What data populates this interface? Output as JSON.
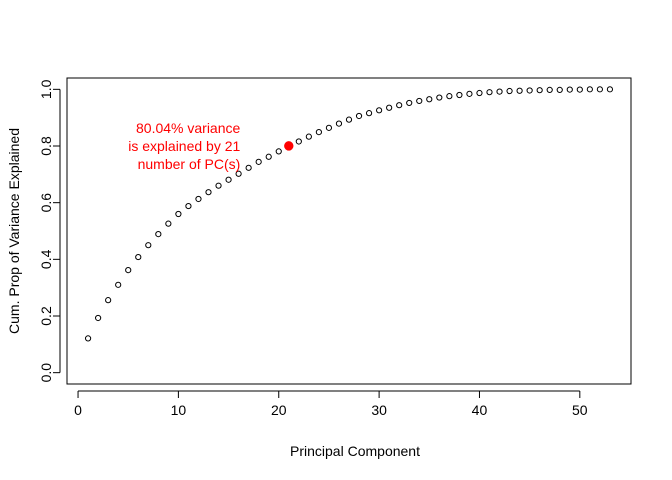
{
  "chart_data": {
    "type": "scatter",
    "title": "",
    "xlabel": "Principal Component",
    "ylabel": "Cum. Prop of Variance Explained",
    "xlim": [
      -1.1,
      55.1
    ],
    "ylim": [
      -0.04,
      1.04
    ],
    "xticks": [
      0,
      10,
      20,
      30,
      40,
      50
    ],
    "yticks": [
      0.0,
      0.2,
      0.4,
      0.6,
      0.8,
      1.0
    ],
    "xtick_labels": [
      "0",
      "10",
      "20",
      "30",
      "40",
      "50"
    ],
    "ytick_labels": [
      "0.0",
      "0.2",
      "0.4",
      "0.6",
      "0.8",
      "1.0"
    ],
    "grid": false,
    "legend": "none",
    "series": [
      {
        "marker": "open-circle",
        "color": "#000000",
        "x": [
          1,
          2,
          3,
          4,
          5,
          6,
          7,
          8,
          9,
          10,
          11,
          12,
          13,
          14,
          15,
          16,
          17,
          18,
          19,
          20,
          21,
          22,
          23,
          24,
          25,
          26,
          27,
          28,
          29,
          30,
          31,
          32,
          33,
          34,
          35,
          36,
          37,
          38,
          39,
          40,
          41,
          42,
          43,
          44,
          45,
          46,
          47,
          48,
          49,
          50,
          51,
          52,
          53
        ],
        "y": [
          0.121,
          0.193,
          0.256,
          0.31,
          0.362,
          0.408,
          0.45,
          0.489,
          0.526,
          0.56,
          0.588,
          0.613,
          0.637,
          0.66,
          0.681,
          0.702,
          0.723,
          0.744,
          0.762,
          0.781,
          0.8004,
          0.816,
          0.833,
          0.849,
          0.864,
          0.879,
          0.893,
          0.906,
          0.916,
          0.926,
          0.935,
          0.944,
          0.952,
          0.959,
          0.965,
          0.971,
          0.976,
          0.98,
          0.984,
          0.987,
          0.99,
          0.992,
          0.994,
          0.995,
          0.996,
          0.997,
          0.998,
          0.998,
          0.999,
          0.999,
          1.0,
          1.0,
          1.0
        ]
      }
    ],
    "highlight": {
      "x": 21,
      "y": 0.8004,
      "color": "#ff0000",
      "marker": "filled-circle"
    },
    "annotation": {
      "lines": [
        "80.04% variance",
        "is explained by 21",
        "number of PC(s)"
      ],
      "color": "#ff0000",
      "x": 7.5,
      "y": 0.8
    }
  }
}
